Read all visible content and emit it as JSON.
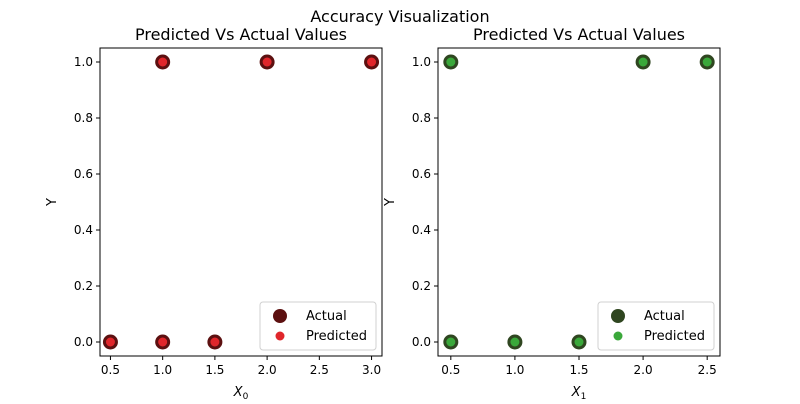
{
  "figure": {
    "suptitle": "Accuracy Visualization"
  },
  "chart_data": [
    {
      "type": "scatter",
      "title": "Predicted Vs Actual Values",
      "xlabel": "X",
      "xlabel_sub": "0",
      "ylabel": "Y",
      "xlim": [
        0.4,
        3.1
      ],
      "ylim": [
        -0.05,
        1.05
      ],
      "xticks": [
        0.5,
        1.0,
        1.5,
        2.0,
        2.5,
        3.0
      ],
      "yticks": [
        0.0,
        0.2,
        0.4,
        0.6,
        0.8,
        1.0
      ],
      "grid": false,
      "legend_position": "bottom-right",
      "series": [
        {
          "name": "Actual",
          "color": "#5c1010",
          "x": [
            0.5,
            1.0,
            1.0,
            1.5,
            2.0,
            3.0
          ],
          "y": [
            0,
            0,
            1,
            0,
            1,
            1
          ]
        },
        {
          "name": "Predicted",
          "color": "#e0262b",
          "x": [
            0.5,
            1.0,
            1.0,
            1.5,
            2.0,
            3.0
          ],
          "y": [
            0,
            0,
            1,
            0,
            1,
            1
          ]
        }
      ]
    },
    {
      "type": "scatter",
      "title": "Predicted Vs Actual Values",
      "xlabel": "X",
      "xlabel_sub": "1",
      "ylabel": "Y",
      "xlim": [
        0.4,
        2.6
      ],
      "ylim": [
        -0.05,
        1.05
      ],
      "xticks": [
        0.5,
        1.0,
        1.5,
        2.0,
        2.5
      ],
      "yticks": [
        0.0,
        0.2,
        0.4,
        0.6,
        0.8,
        1.0
      ],
      "grid": false,
      "legend_position": "bottom-right",
      "series": [
        {
          "name": "Actual",
          "color": "#2f4620",
          "x": [
            0.5,
            0.5,
            1.0,
            1.5,
            2.0,
            2.5
          ],
          "y": [
            0,
            1,
            0,
            0,
            1,
            1
          ]
        },
        {
          "name": "Predicted",
          "color": "#3aa83a",
          "x": [
            0.5,
            0.5,
            1.0,
            1.5,
            2.0,
            2.5
          ],
          "y": [
            0,
            1,
            0,
            0,
            1,
            1
          ]
        }
      ]
    }
  ]
}
